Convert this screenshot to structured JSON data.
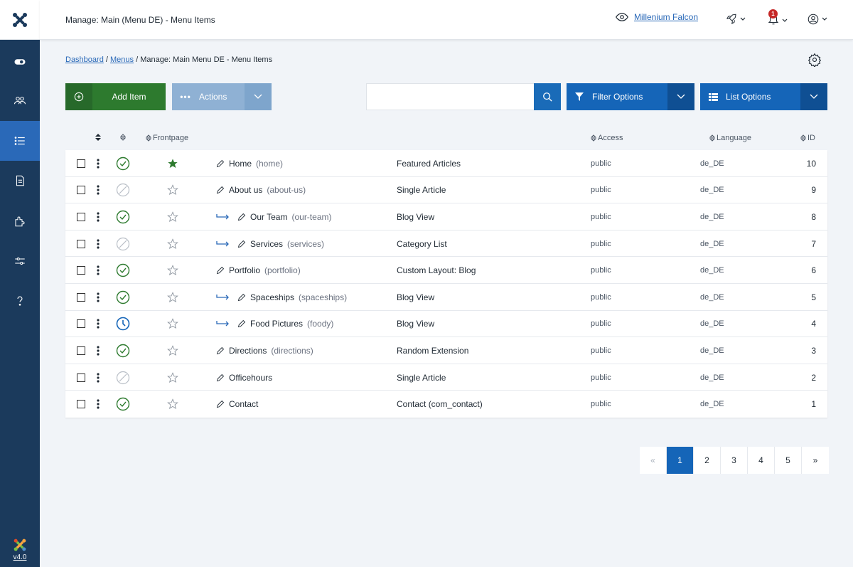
{
  "header": {
    "page_title": "Manage: Main (Menu DE) - Menu Items",
    "site_name": "Millenium Falcon",
    "notification_count": "1"
  },
  "sidebar": {
    "version": "v4.0",
    "items": [
      {
        "icon": "toggle-icon"
      },
      {
        "icon": "users-icon"
      },
      {
        "icon": "list-icon",
        "active": true
      },
      {
        "icon": "file-icon"
      },
      {
        "icon": "puzzle-icon"
      },
      {
        "icon": "sliders-icon"
      },
      {
        "icon": "help-icon"
      }
    ]
  },
  "breadcrumb": {
    "dashboard": "Dashboard",
    "menus": "Menus",
    "current": "Manage: Main Menu DE - Menu Items",
    "sep": "/"
  },
  "toolbar": {
    "add_label": "Add Item",
    "actions_label": "Actions",
    "actions_dots": "•••",
    "filter_label": "Filter Options",
    "list_label": "List Options",
    "search_value": "",
    "search_placeholder": ""
  },
  "table": {
    "headers": {
      "frontpage": "Frontpage",
      "access": "Access",
      "language": "Language",
      "id": "ID"
    },
    "rows": [
      {
        "title": "Home",
        "alias": "(home)",
        "child": false,
        "status": "published",
        "home": true,
        "type": "Featured Articles",
        "access": "public",
        "lang": "de_DE",
        "id": "10"
      },
      {
        "title": "About us",
        "alias": "(about-us)",
        "child": false,
        "status": "unpublished",
        "home": false,
        "type": "Single Article",
        "access": "public",
        "lang": "de_DE",
        "id": "9"
      },
      {
        "title": "Our Team",
        "alias": "(our-team)",
        "child": true,
        "status": "published",
        "home": false,
        "type": "Blog View",
        "access": "public",
        "lang": "de_DE",
        "id": "8"
      },
      {
        "title": "Services",
        "alias": "(services)",
        "child": true,
        "status": "unpublished",
        "home": false,
        "type": "Category List",
        "access": "public",
        "lang": "de_DE",
        "id": "7"
      },
      {
        "title": "Portfolio",
        "alias": "(portfolio)",
        "child": false,
        "status": "published",
        "home": false,
        "type": "Custom Layout: Blog",
        "access": "public",
        "lang": "de_DE",
        "id": "6"
      },
      {
        "title": "Spaceships",
        "alias": "(spaceships)",
        "child": true,
        "status": "published",
        "home": false,
        "type": "Blog View",
        "access": "public",
        "lang": "de_DE",
        "id": "5"
      },
      {
        "title": "Food Pictures",
        "alias": "(foody)",
        "child": true,
        "status": "pending",
        "home": false,
        "type": "Blog View",
        "access": "public",
        "lang": "de_DE",
        "id": "4"
      },
      {
        "title": "Directions",
        "alias": "(directions)",
        "child": false,
        "status": "published",
        "home": false,
        "type": "Random Extension",
        "access": "public",
        "lang": "de_DE",
        "id": "3"
      },
      {
        "title": "Officehours",
        "alias": "",
        "child": false,
        "status": "unpublished",
        "home": false,
        "type": "Single Article",
        "access": "public",
        "lang": "de_DE",
        "id": "2"
      },
      {
        "title": "Contact",
        "alias": "",
        "child": false,
        "status": "published",
        "home": false,
        "type": "Contact (com_contact)",
        "access": "public",
        "lang": "de_DE",
        "id": "1"
      }
    ]
  },
  "pagination": {
    "prev": "«",
    "pages": [
      "1",
      "2",
      "3",
      "4",
      "5"
    ],
    "active": "1",
    "next": "»"
  },
  "colors": {
    "sidebar": "#1b3a5c",
    "accent": "#1565b8",
    "success": "#2d7a2e"
  }
}
